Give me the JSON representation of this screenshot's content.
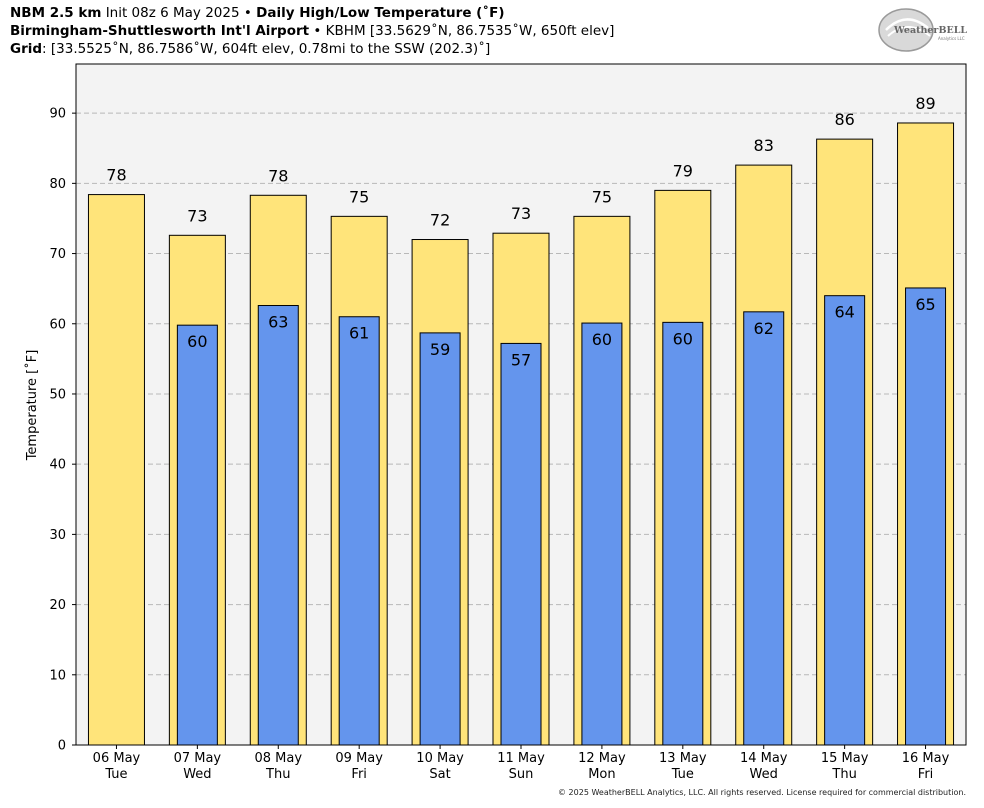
{
  "header": {
    "line1": {
      "model": "NBM 2.5 km",
      "init": "Init 08z 6 May 2025",
      "sep": "•",
      "product": "Daily High/Low Temperature (˚F)"
    },
    "line2": {
      "station": "Birmingham-Shuttlesworth Int'l Airport",
      "sep": "•",
      "info": "KBHM [33.5629˚N, 86.7535˚W, 650ft elev]"
    },
    "line3": {
      "label": "Grid",
      "info": ": [33.5525˚N, 86.7586˚W, 604ft elev, 0.78mi to the SSW (202.3)˚]"
    }
  },
  "logo": {
    "text_big": "WeatherBELL",
    "text_small": "Analytics LLC"
  },
  "footer": "© 2025 WeatherBELL Analytics, LLC. All rights reserved. License required for commercial distribution.",
  "colors": {
    "high": "#ffe47a",
    "low": "#6495ed",
    "plot_bg": "#f3f3f3",
    "grid": "#b8b8b8"
  },
  "chart_data": {
    "type": "bar",
    "ylabel": "Temperature [˚F]",
    "ylim": [
      0,
      97
    ],
    "yticks": [
      0,
      10,
      20,
      30,
      40,
      50,
      60,
      70,
      80,
      90
    ],
    "grid": true,
    "categories": [
      {
        "date": "06 May",
        "dow": "Tue"
      },
      {
        "date": "07 May",
        "dow": "Wed"
      },
      {
        "date": "08 May",
        "dow": "Thu"
      },
      {
        "date": "09 May",
        "dow": "Fri"
      },
      {
        "date": "10 May",
        "dow": "Sat"
      },
      {
        "date": "11 May",
        "dow": "Sun"
      },
      {
        "date": "12 May",
        "dow": "Mon"
      },
      {
        "date": "13 May",
        "dow": "Tue"
      },
      {
        "date": "14 May",
        "dow": "Wed"
      },
      {
        "date": "15 May",
        "dow": "Thu"
      },
      {
        "date": "16 May",
        "dow": "Fri"
      }
    ],
    "series": [
      {
        "key": "high",
        "values": [
          78.4,
          72.6,
          78.3,
          75.3,
          72.0,
          72.9,
          75.3,
          79.0,
          82.6,
          86.3,
          88.6
        ],
        "labels": [
          "78",
          "73",
          "78",
          "75",
          "72",
          "73",
          "75",
          "79",
          "83",
          "86",
          "89"
        ]
      },
      {
        "key": "low",
        "values": [
          null,
          59.8,
          62.6,
          61.0,
          58.7,
          57.2,
          60.1,
          60.2,
          61.7,
          64.0,
          65.1
        ],
        "labels": [
          "",
          "60",
          "63",
          "61",
          "59",
          "57",
          "60",
          "60",
          "62",
          "64",
          "65"
        ]
      }
    ]
  }
}
